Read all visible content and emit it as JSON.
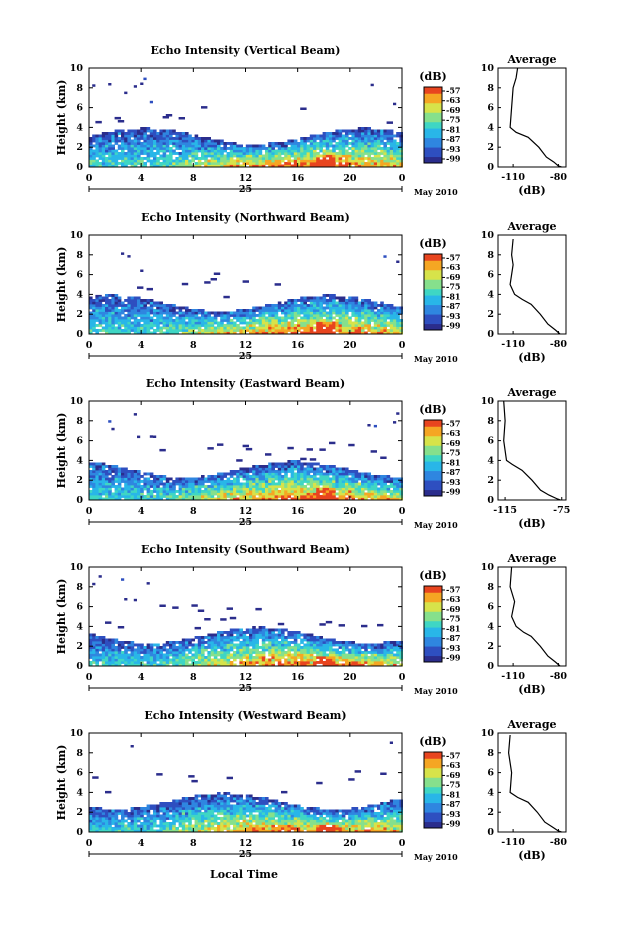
{
  "chart_data": [
    {
      "type": "heatmap",
      "title": "Echo Intensity (Vertical Beam)",
      "ylabel": "Height (km)",
      "xticks": [
        "0",
        "4",
        "8",
        "12",
        "16",
        "20",
        "0"
      ],
      "date_label": "25",
      "month_label": "May 2010",
      "xlim": [
        0,
        24
      ],
      "ylim": [
        0,
        10
      ],
      "yticks": [
        "0",
        "2",
        "4",
        "6",
        "8",
        "10"
      ],
      "colorbar": {
        "unit": "(dB)",
        "ticks": [
          "-57",
          "-63",
          "-69",
          "-75",
          "-81",
          "-87",
          "-93",
          "-99"
        ]
      },
      "average": {
        "title": "Average",
        "xlabel": "(dB)",
        "xticks": [
          "-110",
          "-80"
        ],
        "xlim": [
          -120,
          -75
        ],
        "profile": [
          [
            -107,
            10
          ],
          [
            -108,
            9
          ],
          [
            -110,
            8
          ],
          [
            -111,
            6
          ],
          [
            -112,
            4
          ],
          [
            -108,
            3.5
          ],
          [
            -100,
            3
          ],
          [
            -93,
            2
          ],
          [
            -88,
            1
          ],
          [
            -83,
            0.5
          ],
          [
            -80,
            0.1
          ],
          [
            -78,
            0
          ]
        ]
      }
    },
    {
      "type": "heatmap",
      "title": "Echo Intensity (Northward Beam)",
      "ylabel": "Height (km)",
      "xticks": [
        "0",
        "4",
        "8",
        "12",
        "16",
        "20",
        "0"
      ],
      "date_label": "25",
      "month_label": "May 2010",
      "xlim": [
        0,
        24
      ],
      "ylim": [
        0,
        10
      ],
      "yticks": [
        "0",
        "2",
        "4",
        "6",
        "8",
        "10"
      ],
      "colorbar": {
        "unit": "(dB)",
        "ticks": [
          "-57",
          "-63",
          "-69",
          "-75",
          "-81",
          "-87",
          "-93",
          "-99"
        ]
      },
      "average": {
        "title": "Average",
        "xlabel": "(dB)",
        "xticks": [
          "-110",
          "-80"
        ],
        "xlim": [
          -120,
          -75
        ],
        "profile": [
          [
            -110,
            9.6
          ],
          [
            -111,
            8
          ],
          [
            -110,
            7
          ],
          [
            -112,
            5
          ],
          [
            -109,
            4
          ],
          [
            -104,
            3.5
          ],
          [
            -98,
            3
          ],
          [
            -92,
            2
          ],
          [
            -87,
            1
          ],
          [
            -82,
            0.4
          ],
          [
            -79,
            0
          ]
        ]
      }
    },
    {
      "type": "heatmap",
      "title": "Echo Intensity (Eastward Beam)",
      "ylabel": "Height (km)",
      "xticks": [
        "0",
        "4",
        "8",
        "12",
        "16",
        "20",
        "0"
      ],
      "date_label": "25",
      "month_label": "May 2010",
      "xlim": [
        0,
        24
      ],
      "ylim": [
        0,
        10
      ],
      "yticks": [
        "0",
        "2",
        "4",
        "6",
        "8",
        "10"
      ],
      "colorbar": {
        "unit": "(dB)",
        "ticks": [
          "-57",
          "-63",
          "-69",
          "-75",
          "-81",
          "-87",
          "-93",
          "-99"
        ]
      },
      "average": {
        "title": "Average",
        "xlabel": "(dB)",
        "xticks": [
          "-115",
          "-75"
        ],
        "xlim": [
          -120,
          -72
        ],
        "profile": [
          [
            -116,
            10
          ],
          [
            -115,
            8
          ],
          [
            -116,
            6
          ],
          [
            -114,
            4
          ],
          [
            -110,
            3.6
          ],
          [
            -103,
            3
          ],
          [
            -96,
            2
          ],
          [
            -90,
            1
          ],
          [
            -84,
            0.5
          ],
          [
            -78,
            0.1
          ],
          [
            -76,
            0
          ]
        ]
      }
    },
    {
      "type": "heatmap",
      "title": "Echo Intensity (Southward Beam)",
      "ylabel": "Height (km)",
      "xticks": [
        "0",
        "4",
        "8",
        "12",
        "16",
        "20",
        "0"
      ],
      "date_label": "25",
      "month_label": "May 2010",
      "xlim": [
        0,
        24
      ],
      "ylim": [
        0,
        10
      ],
      "yticks": [
        "0",
        "2",
        "4",
        "6",
        "8",
        "10"
      ],
      "colorbar": {
        "unit": "(dB)",
        "ticks": [
          "-57",
          "-63",
          "-69",
          "-75",
          "-81",
          "-87",
          "-93",
          "-99"
        ]
      },
      "average": {
        "title": "Average",
        "xlabel": "(dB)",
        "xticks": [
          "-110",
          "-80"
        ],
        "xlim": [
          -120,
          -75
        ],
        "profile": [
          [
            -111,
            10
          ],
          [
            -112,
            8
          ],
          [
            -109,
            6.5
          ],
          [
            -111,
            5
          ],
          [
            -108,
            4
          ],
          [
            -103,
            3.4
          ],
          [
            -98,
            3
          ],
          [
            -92,
            2
          ],
          [
            -87,
            1
          ],
          [
            -82,
            0.4
          ],
          [
            -79,
            0
          ]
        ]
      }
    },
    {
      "type": "heatmap",
      "title": "Echo Intensity (Westward Beam)",
      "ylabel": "Height (km)",
      "xticks": [
        "0",
        "4",
        "8",
        "12",
        "16",
        "20",
        "0"
      ],
      "date_label": "25",
      "month_label": "May 2010",
      "xlim": [
        0,
        24
      ],
      "ylim": [
        0,
        10
      ],
      "yticks": [
        "0",
        "2",
        "4",
        "6",
        "8",
        "10"
      ],
      "colorbar": {
        "unit": "(dB)",
        "ticks": [
          "-57",
          "-63",
          "-69",
          "-75",
          "-81",
          "-87",
          "-93",
          "-99"
        ]
      },
      "average": {
        "title": "Average",
        "xlabel": "(dB)",
        "xticks": [
          "-110",
          "-80"
        ],
        "xlim": [
          -120,
          -75
        ],
        "profile": [
          [
            -112,
            9.8
          ],
          [
            -113,
            8
          ],
          [
            -111,
            6
          ],
          [
            -112,
            4
          ],
          [
            -107,
            3.5
          ],
          [
            -100,
            3
          ],
          [
            -94,
            2
          ],
          [
            -89,
            1
          ],
          [
            -84,
            0.5
          ],
          [
            -80,
            0.1
          ],
          [
            -78,
            0
          ]
        ]
      }
    }
  ],
  "footer": {
    "xlabel": "Local Time"
  },
  "colors": [
    "#2b2d8c",
    "#2e4fc0",
    "#2f86e0",
    "#29b6e8",
    "#3fd6c4",
    "#86e08c",
    "#d7e34a",
    "#f5a623",
    "#e8451f"
  ]
}
